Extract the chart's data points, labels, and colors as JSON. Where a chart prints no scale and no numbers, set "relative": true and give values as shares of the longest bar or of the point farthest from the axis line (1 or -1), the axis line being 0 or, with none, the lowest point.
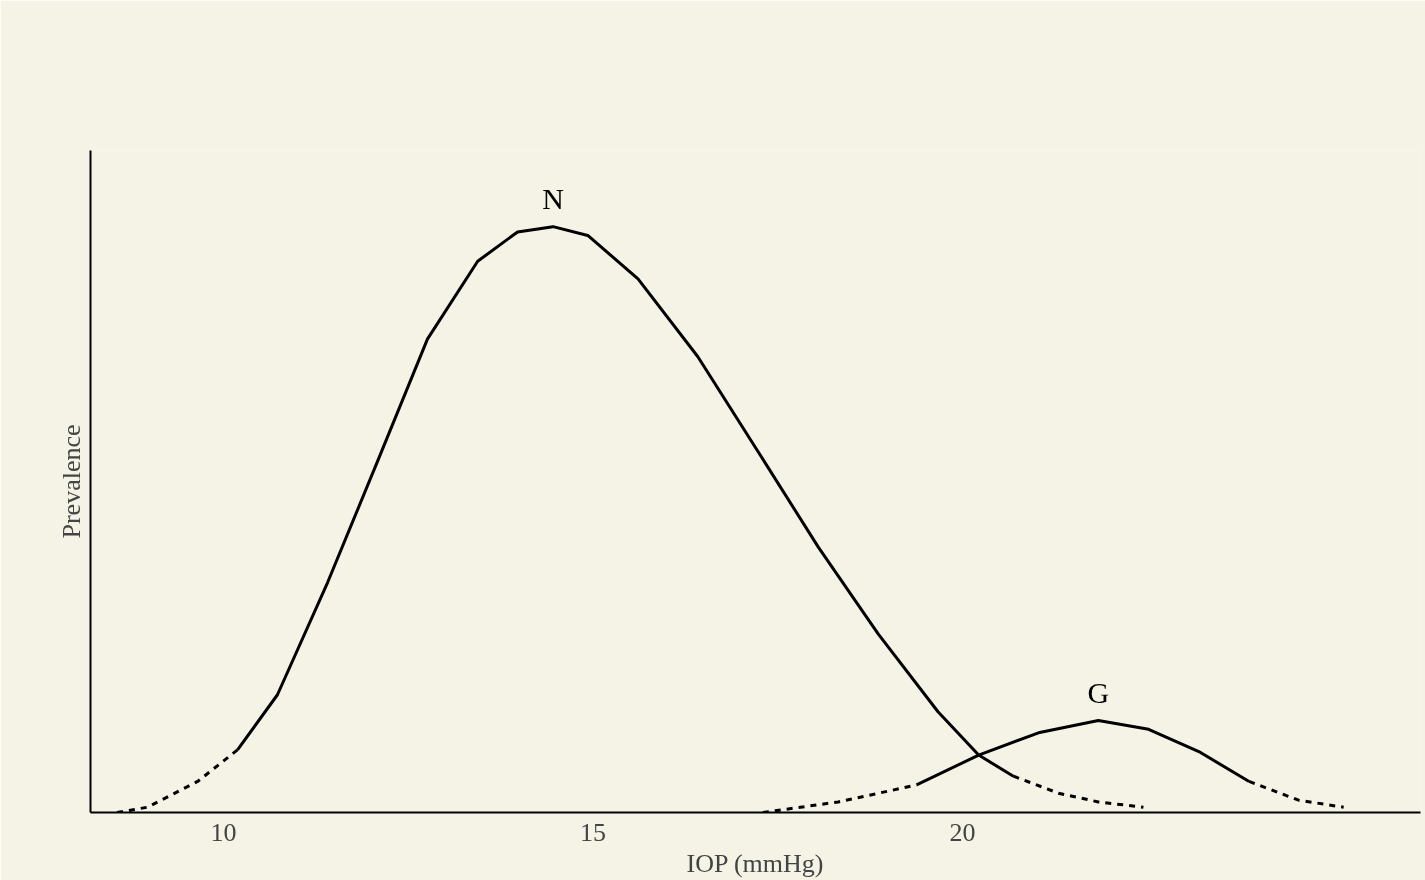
{
  "chart_data": {
    "type": "line",
    "xlabel": "IOP (mmHg)",
    "ylabel": "Prevalence",
    "relative": true,
    "tick_labels": "x",
    "marker": "none",
    "xlim": [
      8.2,
      26.2
    ],
    "xticks": [
      10,
      15,
      20
    ],
    "series": [
      {
        "color": "#000000",
        "line_style": "dashed",
        "x": [
          8.56,
          8.97,
          9.65,
          10.19
        ],
        "values": [
          0,
          0.009,
          0.053,
          0.107
        ]
      },
      {
        "name": "N",
        "color": "#000000",
        "line_style": "solid",
        "x": [
          10.19,
          10.73,
          11.41,
          12.09,
          12.76,
          13.44,
          13.98,
          14.46,
          14.93,
          15.61,
          16.42,
          17.24,
          18.05,
          18.86,
          19.67,
          20.22,
          20.69
        ],
        "values": [
          0.107,
          0.201,
          0.393,
          0.601,
          0.808,
          0.941,
          0.991,
          1.0,
          0.985,
          0.911,
          0.778,
          0.615,
          0.453,
          0.305,
          0.172,
          0.098,
          0.062
        ]
      },
      {
        "color": "#000000",
        "line_style": "dashed",
        "x": [
          20.69,
          21.3,
          21.84,
          22.45
        ],
        "values": [
          0.062,
          0.033,
          0.018,
          0.009
        ]
      },
      {
        "color": "#000000",
        "line_style": "dashed",
        "x": [
          17.3,
          18.32,
          19.38
        ],
        "values": [
          0,
          0.018,
          0.047
        ]
      },
      {
        "name": "G",
        "color": "#000000",
        "line_style": "solid",
        "x": [
          19.38,
          20.22,
          21.03,
          21.84,
          22.52,
          23.2,
          23.88
        ],
        "values": [
          0.047,
          0.098,
          0.136,
          0.157,
          0.142,
          0.104,
          0.053
        ]
      },
      {
        "color": "#000000",
        "line_style": "dashed",
        "x": [
          23.88,
          24.55,
          25.16
        ],
        "values": [
          0.053,
          0.021,
          0.009
        ]
      }
    ]
  }
}
